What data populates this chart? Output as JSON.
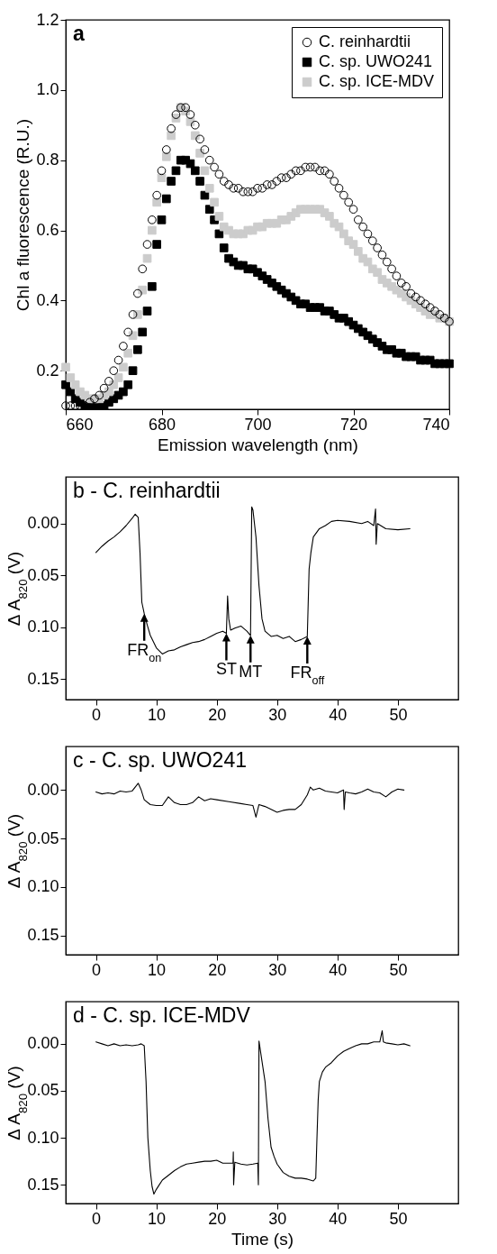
{
  "chart_data": [
    {
      "type": "scatter",
      "title": "a",
      "xlabel": "Emission wavelength (nm)",
      "ylabel": "Chl a fluorescence (R.U.)",
      "legend": "top right",
      "x": [
        660,
        661,
        662,
        663,
        664,
        665,
        666,
        667,
        668,
        669,
        670,
        671,
        672,
        673,
        674,
        675,
        676,
        677,
        678,
        679,
        680,
        681,
        682,
        683,
        684,
        685,
        686,
        687,
        688,
        689,
        690,
        691,
        692,
        693,
        694,
        695,
        696,
        697,
        698,
        699,
        700,
        701,
        702,
        703,
        704,
        705,
        706,
        707,
        708,
        709,
        710,
        711,
        712,
        713,
        714,
        715,
        716,
        717,
        718,
        719,
        720,
        721,
        722,
        723,
        724,
        725,
        726,
        727,
        728,
        729,
        730,
        731,
        732,
        733,
        734,
        735,
        736,
        737,
        738,
        739,
        740
      ],
      "xlim": [
        660,
        740
      ],
      "xticks": [
        660,
        680,
        700,
        720,
        740
      ],
      "ylim": [
        0.09,
        1.2
      ],
      "yticks": [
        0.2,
        0.4,
        0.6,
        0.8,
        {
          "value": 1,
          "label": "1.0"
        },
        1.2
      ],
      "series": [
        {
          "name": "C. reinhardtii",
          "color": "#000000",
          "marker": "circle",
          "values": [
            0.1,
            0.1,
            0.1,
            0.1,
            0.1,
            0.11,
            0.12,
            0.13,
            0.15,
            0.17,
            0.2,
            0.23,
            0.27,
            0.31,
            0.36,
            0.42,
            0.49,
            0.56,
            0.63,
            0.7,
            0.77,
            0.83,
            0.89,
            0.93,
            0.95,
            0.95,
            0.93,
            0.9,
            0.86,
            0.83,
            0.8,
            0.78,
            0.76,
            0.74,
            0.73,
            0.72,
            0.72,
            0.71,
            0.71,
            0.71,
            0.72,
            0.72,
            0.73,
            0.73,
            0.74,
            0.75,
            0.75,
            0.76,
            0.77,
            0.77,
            0.78,
            0.78,
            0.78,
            0.77,
            0.77,
            0.76,
            0.74,
            0.72,
            0.7,
            0.68,
            0.66,
            0.63,
            0.61,
            0.59,
            0.57,
            0.55,
            0.53,
            0.51,
            0.49,
            0.47,
            0.45,
            0.44,
            0.42,
            0.41,
            0.4,
            0.39,
            0.38,
            0.37,
            0.36,
            0.35,
            0.34
          ]
        },
        {
          "name": "C. sp. UWO241",
          "color": "#000000",
          "marker": "square",
          "values": [
            0.16,
            0.14,
            0.12,
            0.11,
            0.1,
            0.1,
            0.1,
            0.1,
            0.1,
            0.11,
            0.12,
            0.13,
            0.14,
            0.16,
            0.2,
            0.26,
            0.31,
            0.37,
            0.44,
            0.56,
            0.63,
            0.69,
            0.74,
            0.77,
            0.8,
            0.8,
            0.79,
            0.77,
            0.74,
            0.7,
            0.66,
            0.63,
            0.59,
            0.55,
            0.52,
            0.51,
            0.5,
            0.5,
            0.49,
            0.49,
            0.48,
            0.47,
            0.46,
            0.45,
            0.44,
            0.43,
            0.42,
            0.41,
            0.4,
            0.39,
            0.39,
            0.38,
            0.38,
            0.38,
            0.37,
            0.37,
            0.36,
            0.35,
            0.35,
            0.34,
            0.33,
            0.32,
            0.31,
            0.3,
            0.29,
            0.28,
            0.27,
            0.26,
            0.26,
            0.25,
            0.25,
            0.24,
            0.24,
            0.24,
            0.23,
            0.23,
            0.23,
            0.22,
            0.22,
            0.22,
            0.22
          ]
        },
        {
          "name": "C. sp. ICE-MDV",
          "color": "#cccccc",
          "marker": "square",
          "values": [
            0.21,
            0.18,
            0.16,
            0.14,
            0.13,
            0.12,
            0.12,
            0.12,
            0.13,
            0.14,
            0.16,
            0.18,
            0.21,
            0.25,
            0.3,
            0.36,
            0.43,
            0.52,
            0.6,
            0.68,
            0.75,
            0.81,
            0.87,
            0.92,
            0.95,
            0.94,
            0.91,
            0.87,
            0.82,
            0.77,
            0.72,
            0.68,
            0.64,
            0.61,
            0.6,
            0.59,
            0.59,
            0.59,
            0.6,
            0.6,
            0.61,
            0.61,
            0.62,
            0.62,
            0.62,
            0.63,
            0.63,
            0.64,
            0.65,
            0.66,
            0.66,
            0.66,
            0.66,
            0.66,
            0.65,
            0.64,
            0.62,
            0.61,
            0.59,
            0.57,
            0.56,
            0.54,
            0.52,
            0.51,
            0.49,
            0.48,
            0.46,
            0.45,
            0.44,
            0.43,
            0.42,
            0.41,
            0.4,
            0.39,
            0.38,
            0.37,
            0.36,
            0.36,
            0.35,
            0.35,
            0.34
          ]
        }
      ]
    },
    {
      "type": "line",
      "title": "b - C. reinhardtii",
      "ylabel": "Δ A$_{820}$ (V)",
      "xlim": [
        -5,
        60
      ],
      "xticks": [
        0,
        10,
        20,
        30,
        40,
        50
      ],
      "ylim": [
        0.17,
        -0.045
      ],
      "yticks": [
        {
          "value": 0,
          "label": "0.00"
        },
        0.05,
        {
          "value": 0.1,
          "label": "0.10"
        },
        0.15
      ],
      "annotations": [
        {
          "text": "FR$_{on}$",
          "x": 8,
          "y": 0.087
        },
        {
          "text": "ST",
          "x": 21.6,
          "y": 0.106
        },
        {
          "text": "MT",
          "x": 25.6,
          "y": 0.108
        },
        {
          "text": "FR$_{off}$",
          "x": 35,
          "y": 0.109
        }
      ],
      "series": [
        {
          "color": "#000000",
          "x": [
            0,
            1,
            2,
            3,
            4,
            5,
            6,
            6.5,
            7,
            7.3,
            7.6,
            8,
            8.5,
            9,
            10,
            11,
            12,
            13,
            14,
            15,
            16,
            17,
            18,
            19,
            20,
            21,
            21.6,
            21.8,
            22,
            22.3,
            23,
            24,
            25,
            25.6,
            25.8,
            26,
            26.5,
            27,
            27.5,
            28,
            29,
            30,
            31,
            32,
            33,
            34,
            35,
            35.3,
            35.6,
            36,
            37,
            38,
            39,
            40,
            42,
            44,
            45,
            46,
            46.3,
            46.4,
            46.6,
            48,
            50,
            52
          ],
          "values": [
            0.028,
            0.022,
            0.017,
            0.013,
            0.008,
            0.002,
            -0.005,
            -0.009,
            -0.006,
            0.028,
            0.076,
            0.087,
            0.098,
            0.108,
            0.12,
            0.126,
            0.123,
            0.122,
            0.119,
            0.117,
            0.115,
            0.114,
            0.112,
            0.109,
            0.106,
            0.104,
            0.106,
            0.07,
            0.092,
            0.103,
            0.101,
            0.099,
            0.104,
            0.108,
            -0.016,
            -0.013,
            0.013,
            0.06,
            0.092,
            0.104,
            0.109,
            0.108,
            0.111,
            0.109,
            0.114,
            0.112,
            0.109,
            0.044,
            0.028,
            0.013,
            0.005,
            0.002,
            -0.002,
            -0.003,
            -0.002,
            0,
            -0.002,
            0.002,
            -0.014,
            0.02,
            0,
            0.005,
            0.006,
            0.005
          ]
        }
      ]
    },
    {
      "type": "line",
      "title": "c - C. sp. UWO241",
      "ylabel": "Δ A$_{820}$ (V)",
      "xlim": [
        -5,
        60
      ],
      "xticks": [
        0,
        10,
        20,
        30,
        40,
        50
      ],
      "ylim": [
        0.17,
        -0.045
      ],
      "yticks": [
        {
          "value": 0,
          "label": "0.00"
        },
        0.05,
        {
          "value": 0.1,
          "label": "0.10"
        },
        0.15
      ],
      "series": [
        {
          "color": "#000000",
          "x": [
            0,
            1,
            2,
            3,
            4,
            5,
            6,
            7,
            7.5,
            8,
            9,
            10,
            11,
            12,
            13,
            14,
            15,
            16,
            17,
            18,
            19,
            20,
            22,
            24,
            25,
            26,
            26.5,
            27,
            28,
            29,
            30,
            31,
            32,
            33,
            34,
            35,
            35.5,
            36,
            37,
            38,
            39,
            40,
            41,
            41.1,
            41.3,
            42,
            43,
            44,
            45,
            46,
            47,
            48,
            49,
            50,
            51
          ],
          "values": [
            0.002,
            0.004,
            0.003,
            0.004,
            0.001,
            0.002,
            0.001,
            -0.007,
            0,
            0.01,
            0.015,
            0.016,
            0.016,
            0.007,
            0.013,
            0.015,
            0.015,
            0.013,
            0.007,
            0.011,
            0.009,
            0.01,
            0.012,
            0.014,
            0.015,
            0.016,
            0.028,
            0.015,
            0.017,
            0.02,
            0.023,
            0.021,
            0.02,
            0.02,
            0.015,
            0.005,
            -0.003,
            0,
            -0.002,
            0.001,
            0.002,
            0.003,
            0,
            0.02,
            0.002,
            0.003,
            0.004,
            0.002,
            -0.001,
            0.002,
            0.003,
            0.007,
            0.002,
            -0.001,
            0
          ]
        }
      ]
    },
    {
      "type": "line",
      "title": "d - C. sp. ICE-MDV",
      "xlabel": "Time (s)",
      "ylabel": "Δ A$_{820}$ (V)",
      "xlim": [
        -5,
        60
      ],
      "xticks": [
        0,
        10,
        20,
        30,
        40,
        50
      ],
      "ylim": [
        0.17,
        -0.045
      ],
      "yticks": [
        {
          "value": 0,
          "label": "0.00"
        },
        0.05,
        {
          "value": 0.1,
          "label": "0.10"
        },
        0.15
      ],
      "series": [
        {
          "color": "#000000",
          "x": [
            0,
            1,
            2,
            3,
            4,
            5,
            6,
            7,
            7.5,
            8,
            8.3,
            8.6,
            9,
            9.3,
            9.6,
            10,
            10.5,
            11,
            12,
            13,
            14,
            15,
            16,
            17,
            18,
            19,
            20,
            21,
            22,
            22.7,
            22.75,
            22.8,
            23,
            24,
            25,
            26,
            26.8,
            26.9,
            27,
            27.3,
            28,
            28.5,
            29,
            29.5,
            30,
            31,
            32,
            33,
            34,
            35,
            36,
            36.4,
            36.6,
            36.8,
            37,
            37.5,
            38,
            39,
            40,
            41,
            42,
            43,
            44,
            45,
            46,
            47,
            47.4,
            47.6,
            48,
            49,
            50,
            51,
            52
          ],
          "values": [
            -0.002,
            0,
            0.002,
            0,
            0.002,
            0.001,
            0.002,
            0.001,
            0,
            0.002,
            0.04,
            0.1,
            0.135,
            0.152,
            0.16,
            0.155,
            0.15,
            0.145,
            0.14,
            0.135,
            0.131,
            0.128,
            0.127,
            0.126,
            0.125,
            0.125,
            0.124,
            0.127,
            0.127,
            0.127,
            0.115,
            0.15,
            0.126,
            0.128,
            0.129,
            0.128,
            0.127,
            0.15,
            -0.003,
            0.01,
            0.04,
            0.08,
            0.11,
            0.12,
            0.128,
            0.137,
            0.141,
            0.143,
            0.143,
            0.144,
            0.146,
            0.143,
            0.1,
            0.06,
            0.04,
            0.03,
            0.025,
            0.02,
            0.013,
            0.008,
            0.005,
            0.002,
            0,
            0,
            -0.002,
            -0.002,
            -0.014,
            -0.002,
            -0.001,
            0,
            0.001,
            0,
            0.002
          ]
        }
      ]
    }
  ]
}
